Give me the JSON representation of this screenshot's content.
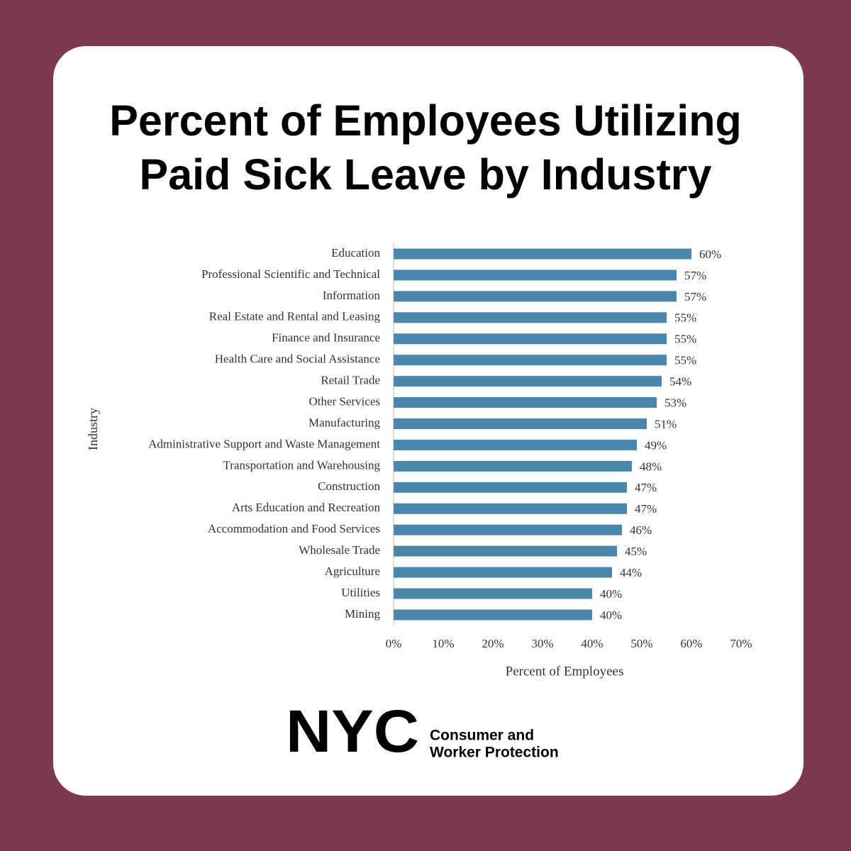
{
  "chart_data": {
    "type": "bar",
    "orientation": "horizontal",
    "title": "Percent of Employees Utilizing Paid Sick Leave by Industry",
    "y_label": "Industry",
    "x_label": "Percent of Employees",
    "categories": [
      "Education",
      "Professional Scientific and Technical",
      "Information",
      "Real Estate and Rental and Leasing",
      "Finance and Insurance",
      "Health Care and Social Assistance",
      "Retail Trade",
      "Other Services",
      "Manufacturing",
      "Administrative Support and Waste Management",
      "Transportation and Warehousing",
      "Construction",
      "Arts Education and Recreation",
      "Accommodation and Food Services",
      "Wholesale Trade",
      "Agriculture",
      "Utilities",
      "Mining"
    ],
    "values": [
      60,
      57,
      57,
      55,
      55,
      55,
      54,
      53,
      51,
      49,
      48,
      47,
      47,
      46,
      45,
      44,
      40,
      40
    ],
    "value_labels": [
      "60%",
      "57%",
      "57%",
      "55%",
      "55%",
      "55%",
      "54%",
      "53%",
      "51%",
      "49%",
      "48%",
      "47%",
      "47%",
      "46%",
      "45%",
      "44%",
      "40%",
      "40%"
    ],
    "color": "#4a87aa",
    "xlim": [
      0,
      70
    ],
    "xticks": [
      {
        "value": 0,
        "label": "0%"
      },
      {
        "value": 10,
        "label": "10%"
      },
      {
        "value": 20,
        "label": "20%"
      },
      {
        "value": 30,
        "label": "30%"
      },
      {
        "value": 40,
        "label": "40%"
      },
      {
        "value": 50,
        "label": "50%"
      },
      {
        "value": 60,
        "label": "60%"
      },
      {
        "value": 70,
        "label": "70%"
      }
    ],
    "grid": false
  },
  "logo": {
    "mark": "NYC",
    "lines": [
      "Consumer and",
      "Worker Protection"
    ]
  }
}
